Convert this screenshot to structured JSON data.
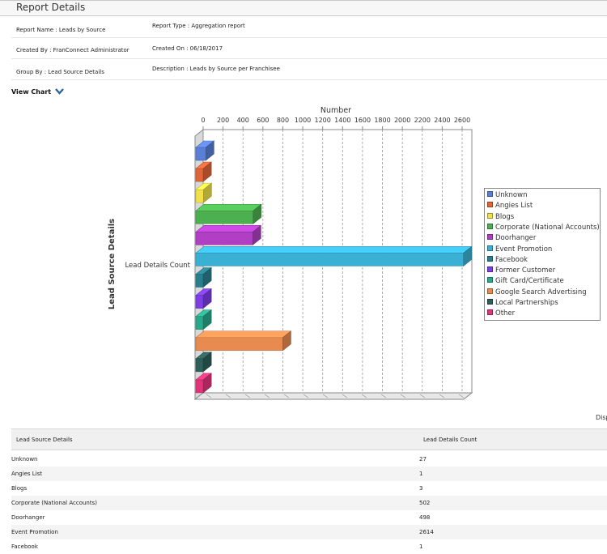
{
  "report": {
    "title": "Report Details",
    "meta": [
      {
        "left": "Report Name : Leads by Source",
        "right": "Report Type : Aggregation report"
      },
      {
        "left": "Created By : FranConnect Administrator",
        "right": "Created On : 06/18/2017"
      },
      {
        "left": "Group By : Lead Source Details",
        "right": "Description : Leads by Source per Franchisee"
      }
    ],
    "view_chart_label": "View Chart",
    "display_label": "Disp"
  },
  "colors": {
    "axis": "#888888",
    "grid": "#9a9a9a",
    "wall": "#d9d9d9"
  },
  "chart_data": {
    "type": "bar",
    "orientation": "horizontal",
    "title": "",
    "xlabel": "Number",
    "ylabel": "Lead Source Details",
    "category_label": "Lead Details Count",
    "xlim": [
      0,
      2600
    ],
    "xticks": [
      0,
      200,
      400,
      600,
      800,
      1000,
      1200,
      1400,
      1600,
      1800,
      2000,
      2200,
      2400,
      2600
    ],
    "legend_position": "right",
    "series": [
      {
        "name": "Unknown",
        "value": 27,
        "color": "#5a7fd6"
      },
      {
        "name": "Angies List",
        "value": 1,
        "color": "#e0653a"
      },
      {
        "name": "Blogs",
        "value": 3,
        "color": "#f0e04a"
      },
      {
        "name": "Corporate (National Accounts)",
        "value": 502,
        "color": "#4caf50"
      },
      {
        "name": "Doorhanger",
        "value": 498,
        "color": "#b03fc4"
      },
      {
        "name": "Event Promotion",
        "value": 2614,
        "color": "#3ab0d4"
      },
      {
        "name": "Facebook",
        "value": 1,
        "color": "#2a7f8e"
      },
      {
        "name": "Former Customer",
        "value": 1,
        "color": "#7b3fe4"
      },
      {
        "name": "Gift Card/Certificate",
        "value": 1,
        "color": "#2aa88a"
      },
      {
        "name": "Google Search Advertising",
        "value": 800,
        "color": "#e88b50"
      },
      {
        "name": "Local Partnerships",
        "value": 1,
        "color": "#2f5f5a"
      },
      {
        "name": "Other",
        "value": 1,
        "color": "#e0357a"
      }
    ]
  },
  "table": {
    "headers": [
      "Lead Source Details",
      "Lead Details Count"
    ],
    "rows": [
      [
        "Unknown",
        "27"
      ],
      [
        "Angies List",
        "1"
      ],
      [
        "Blogs",
        "3"
      ],
      [
        "Corporate (National Accounts)",
        "502"
      ],
      [
        "Doorhanger",
        "498"
      ],
      [
        "Event Promotion",
        "2614"
      ],
      [
        "Facebook",
        "1"
      ]
    ]
  }
}
